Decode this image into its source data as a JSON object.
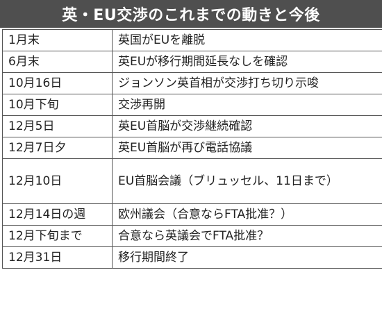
{
  "title": "英・EU交渉のこれまでの動きと今後",
  "rows": [
    {
      "date": "1月末",
      "event": "英国がEUを離脱"
    },
    {
      "date": "6月末",
      "event": "英EUが移行期間延長なしを確認"
    },
    {
      "date": "10月16日",
      "event": "ジョンソン英首相が交渉打ち切り示唆"
    },
    {
      "date": "10月下旬",
      "event": "交渉再開"
    },
    {
      "date": "12月5日",
      "event": "英EU首脳が交渉継続確認"
    },
    {
      "date": "12月7日夕",
      "event": "英EU首脳が再び電話協議"
    },
    {
      "date": "12月10日",
      "event": "EU首脳会議（ブリュッセル、11日まで）"
    },
    {
      "date": "12月14日の週",
      "event": "欧州議会（合意ならFTA批准？）"
    },
    {
      "date": "12月下旬まで",
      "event": "合意なら英議会でFTA批准？"
    },
    {
      "date": "12月31日",
      "event": "移行期間終了"
    }
  ],
  "colors": {
    "header_background": "#4f4f4f",
    "header_text": "#ffffff",
    "border": "#555555",
    "cell_text": "#222222"
  }
}
